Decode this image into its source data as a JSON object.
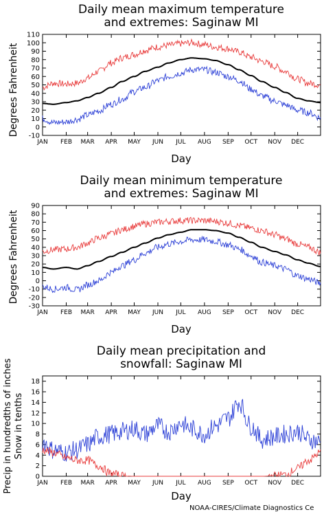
{
  "chart_data": [
    {
      "type": "line",
      "title": "Daily mean maximum temperature",
      "subtitle": "and extremes: Saginaw MI",
      "xlabel": "Day",
      "ylabel": "Degrees Fahrenheit",
      "yticks": [
        "-10",
        "0",
        "10",
        "20",
        "30",
        "40",
        "50",
        "60",
        "70",
        "80",
        "90",
        "100",
        "110"
      ],
      "ylim": [
        -10,
        110
      ],
      "xlim": [
        1,
        365
      ],
      "xticks": [
        "JAN",
        "FEB",
        "MAR",
        "APR",
        "MAY",
        "JUN",
        "JUL",
        "AUG",
        "SEP",
        "OCT",
        "NOV",
        "DEC"
      ],
      "series": [
        {
          "color": "#e83a3a",
          "doy": [
            1,
            15,
            32,
            46,
            60,
            74,
            91,
            105,
            121,
            135,
            152,
            166,
            182,
            196,
            213,
            227,
            244,
            258,
            274,
            288,
            305,
            319,
            335,
            349,
            365
          ],
          "values": [
            47,
            52,
            51,
            52,
            58,
            66,
            76,
            82,
            86,
            91,
            95,
            97,
            99,
            100,
            98,
            95,
            93,
            89,
            83,
            78,
            72,
            66,
            57,
            52,
            50
          ]
        },
        {
          "color": "#000000",
          "doy": [
            1,
            15,
            32,
            46,
            60,
            74,
            91,
            105,
            121,
            135,
            152,
            166,
            182,
            196,
            213,
            227,
            244,
            258,
            274,
            288,
            305,
            319,
            335,
            349,
            365
          ],
          "values": [
            28,
            27,
            29,
            31,
            35,
            40,
            47,
            54,
            60,
            66,
            71,
            76,
            80,
            82,
            81,
            79,
            74,
            68,
            61,
            54,
            47,
            41,
            34,
            31,
            29
          ]
        },
        {
          "color": "#2b3fd6",
          "doy": [
            1,
            15,
            32,
            46,
            60,
            74,
            91,
            105,
            121,
            135,
            152,
            166,
            182,
            196,
            213,
            227,
            244,
            258,
            274,
            288,
            305,
            319,
            335,
            349,
            365
          ],
          "values": [
            10,
            5,
            6,
            9,
            14,
            19,
            27,
            33,
            42,
            47,
            55,
            60,
            64,
            68,
            68,
            65,
            60,
            55,
            45,
            37,
            31,
            26,
            20,
            17,
            11
          ]
        }
      ]
    },
    {
      "type": "line",
      "title": "Daily mean minimum temperature",
      "subtitle": "and extremes: Saginaw MI",
      "xlabel": "Day",
      "ylabel": "Degrees Fahrenheit",
      "yticks": [
        "-30",
        "-20",
        "-10",
        "0",
        "10",
        "20",
        "30",
        "40",
        "50",
        "60",
        "70",
        "80",
        "90"
      ],
      "ylim": [
        -30,
        90
      ],
      "xlim": [
        1,
        365
      ],
      "xticks": [
        "JAN",
        "FEB",
        "MAR",
        "APR",
        "MAY",
        "JUN",
        "JUL",
        "AUG",
        "SEP",
        "OCT",
        "NOV",
        "DEC"
      ],
      "series": [
        {
          "color": "#e83a3a",
          "doy": [
            1,
            15,
            32,
            46,
            60,
            74,
            91,
            105,
            121,
            135,
            152,
            166,
            182,
            196,
            213,
            227,
            244,
            258,
            274,
            288,
            305,
            319,
            335,
            349,
            365
          ],
          "values": [
            35,
            37,
            38,
            40,
            45,
            51,
            56,
            61,
            65,
            68,
            70,
            71,
            72,
            72,
            72,
            71,
            69,
            66,
            63,
            60,
            55,
            50,
            44,
            40,
            34
          ]
        },
        {
          "color": "#000000",
          "doy": [
            1,
            15,
            32,
            46,
            60,
            74,
            91,
            105,
            121,
            135,
            152,
            166,
            182,
            196,
            213,
            227,
            244,
            258,
            274,
            288,
            305,
            319,
            335,
            349,
            365
          ],
          "values": [
            16,
            14,
            16,
            14,
            18,
            23,
            29,
            34,
            40,
            45,
            51,
            55,
            58,
            61,
            61,
            60,
            57,
            52,
            46,
            40,
            35,
            31,
            25,
            21,
            17
          ]
        },
        {
          "color": "#2b3fd6",
          "doy": [
            1,
            15,
            32,
            46,
            60,
            74,
            91,
            105,
            121,
            135,
            152,
            166,
            182,
            196,
            213,
            227,
            244,
            258,
            274,
            288,
            305,
            319,
            335,
            349,
            365
          ],
          "values": [
            -7,
            -10,
            -8,
            -11,
            -5,
            0,
            10,
            18,
            25,
            33,
            40,
            44,
            47,
            49,
            49,
            47,
            43,
            38,
            30,
            22,
            18,
            14,
            6,
            2,
            -3
          ]
        }
      ]
    },
    {
      "type": "line",
      "title": "Daily mean precipitation and",
      "subtitle": "snowfall: Saginaw MI",
      "xlabel": "Day",
      "ylabel": "Precip in hundredths of inches",
      "ylabel2": "Snow in tenths",
      "yticks": [
        "0",
        "2",
        "4",
        "6",
        "8",
        "10",
        "12",
        "14",
        "16",
        "18"
      ],
      "ylim": [
        0,
        19
      ],
      "xlim": [
        1,
        365
      ],
      "xticks": [
        "JAN",
        "FEB",
        "MAR",
        "APR",
        "MAY",
        "JUN",
        "JUL",
        "AUG",
        "SEP",
        "OCT",
        "NOV",
        "DEC"
      ],
      "series": [
        {
          "color": "#2b3fd6",
          "doy": [
            1,
            15,
            32,
            46,
            60,
            74,
            91,
            105,
            121,
            135,
            152,
            166,
            182,
            196,
            213,
            227,
            244,
            258,
            274,
            288,
            305,
            319,
            335,
            349,
            365
          ],
          "values": [
            6.5,
            5,
            4.5,
            5,
            6,
            7.5,
            8,
            8.5,
            9,
            8,
            9.5,
            8.5,
            10,
            9,
            8,
            9.5,
            11,
            14,
            9.5,
            7,
            7.5,
            8,
            8.5,
            7,
            6.5
          ]
        },
        {
          "color": "#e83a3a",
          "doy": [
            1,
            15,
            32,
            46,
            60,
            74,
            91,
            105,
            121,
            135,
            152,
            166,
            182,
            196,
            213,
            227,
            244,
            258,
            274,
            288,
            305,
            319,
            335,
            349,
            365
          ],
          "values": [
            5,
            4.5,
            3.5,
            3,
            3,
            2,
            0.5,
            0.1,
            0,
            0,
            0,
            0,
            0,
            0,
            0,
            0,
            0,
            0,
            0,
            0,
            0.1,
            0.3,
            1.5,
            3,
            4.5
          ]
        }
      ]
    }
  ],
  "footer": "NOAA-CIRES/Climate Diagnostics Ce"
}
